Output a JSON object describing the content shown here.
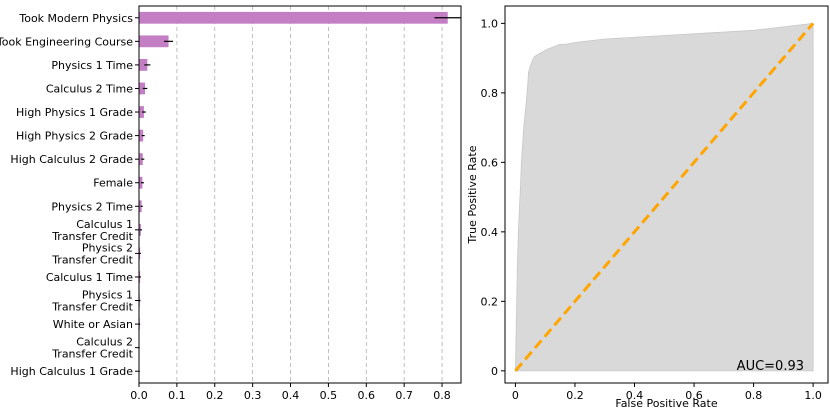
{
  "chart_data": [
    {
      "type": "bar",
      "orientation": "horizontal",
      "title": "",
      "xlabel": "",
      "ylabel": "",
      "xlim": [
        0,
        0.85
      ],
      "xticks": [
        "0.0",
        "0.1",
        "0.2",
        "0.3",
        "0.4",
        "0.5",
        "0.6",
        "0.7",
        "0.8"
      ],
      "grid": "vertical-dashed",
      "bar_color": "#c47fc4",
      "categories": [
        [
          "Took Modern Physics"
        ],
        [
          "Took Engineering Course"
        ],
        [
          "Physics 1 Time"
        ],
        [
          "Calculus 2 Time"
        ],
        [
          "High Physics 1 Grade"
        ],
        [
          "High Physics 2 Grade"
        ],
        [
          "High Calculus 2 Grade"
        ],
        [
          "Female"
        ],
        [
          "Physics 2 Time"
        ],
        [
          "Calculus 1",
          "Transfer Credit"
        ],
        [
          "Physics 2",
          "Transfer Credit"
        ],
        [
          "Calculus 1 Time"
        ],
        [
          "Physics 1",
          "Transfer Credit"
        ],
        [
          "White or Asian"
        ],
        [
          "Calculus 2",
          "Transfer Credit"
        ],
        [
          "High Calculus 1 Grade"
        ]
      ],
      "values": [
        0.815,
        0.078,
        0.022,
        0.016,
        0.013,
        0.011,
        0.01,
        0.009,
        0.007,
        0.005,
        0.003,
        0.003,
        0.002,
        0.002,
        0.001,
        0.001
      ],
      "errors": [
        0.035,
        0.012,
        0.008,
        0.006,
        0.005,
        0.004,
        0.004,
        0.004,
        0.003,
        0.003,
        0.002,
        0.002,
        0.002,
        0.001,
        0.001,
        0.001
      ]
    },
    {
      "type": "area",
      "title": "",
      "xlabel": "False Positive Rate",
      "ylabel": "True Positive Rate",
      "xlim": [
        -0.035,
        1.05
      ],
      "ylim": [
        -0.035,
        1.05
      ],
      "xticks": [
        "0",
        "0.2",
        "0.4",
        "0.6",
        "0.8",
        "1.0"
      ],
      "yticks": [
        "0",
        "0.2",
        "0.4",
        "0.6",
        "0.8",
        "1.0"
      ],
      "grid": false,
      "roc_fill_color": "#d9d9d9",
      "diagonal_color": "#ffa500",
      "annotation": "AUC=0.93",
      "roc_x": [
        0,
        0.003,
        0.006,
        0.006,
        0.01,
        0.013,
        0.017,
        0.02,
        0.024,
        0.027,
        0.03,
        0.034,
        0.037,
        0.041,
        0.044,
        0.051,
        0.058,
        0.064,
        0.075,
        0.085,
        0.095,
        0.105,
        0.12,
        0.135,
        0.15,
        0.17,
        0.2,
        0.3,
        0.4,
        0.5,
        0.6,
        0.7,
        0.8,
        0.85,
        0.9,
        0.95,
        1.0
      ],
      "roc_y": [
        0,
        0.14,
        0.27,
        0.29,
        0.4,
        0.46,
        0.53,
        0.6,
        0.65,
        0.69,
        0.72,
        0.75,
        0.78,
        0.82,
        0.86,
        0.88,
        0.895,
        0.905,
        0.91,
        0.915,
        0.92,
        0.925,
        0.93,
        0.935,
        0.94,
        0.94,
        0.945,
        0.955,
        0.96,
        0.965,
        0.97,
        0.975,
        0.98,
        0.985,
        0.99,
        0.995,
        1.0
      ],
      "diagonal_x": [
        0,
        1
      ],
      "diagonal_y": [
        0,
        1
      ]
    }
  ]
}
